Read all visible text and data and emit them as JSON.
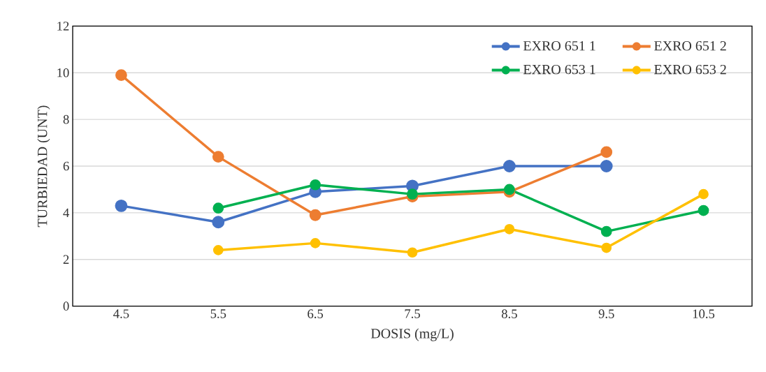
{
  "chart_data": {
    "type": "line",
    "xlabel": "DOSIS (mg/L)",
    "ylabel": "TURBIEDAD (UNT)",
    "categories": [
      "4.5",
      "5.5",
      "6.5",
      "7.5",
      "8.5",
      "9.5",
      "10.5"
    ],
    "series": [
      {
        "name": "EXRO 651 1",
        "color": "#4472c4",
        "values": [
          4.3,
          3.6,
          4.9,
          5.15,
          6.0,
          6.0,
          null
        ]
      },
      {
        "name": "EXRO 651 2",
        "color": "#ed7d31",
        "values": [
          9.9,
          6.4,
          3.9,
          4.7,
          4.9,
          6.6,
          null
        ]
      },
      {
        "name": "EXRO 653 1",
        "color": "#00b050",
        "values": [
          null,
          4.2,
          5.2,
          4.8,
          5.0,
          3.2,
          4.1
        ]
      },
      {
        "name": "EXRO 653 2",
        "color": "#ffc000",
        "values": [
          null,
          2.4,
          2.7,
          2.3,
          3.3,
          2.5,
          4.8
        ]
      }
    ],
    "ylim": [
      0,
      12
    ],
    "yticks": [
      0,
      2,
      4,
      6,
      8,
      10,
      12
    ],
    "grid": "y",
    "legend": "top right",
    "marker": "circle",
    "line_style": "solid"
  }
}
